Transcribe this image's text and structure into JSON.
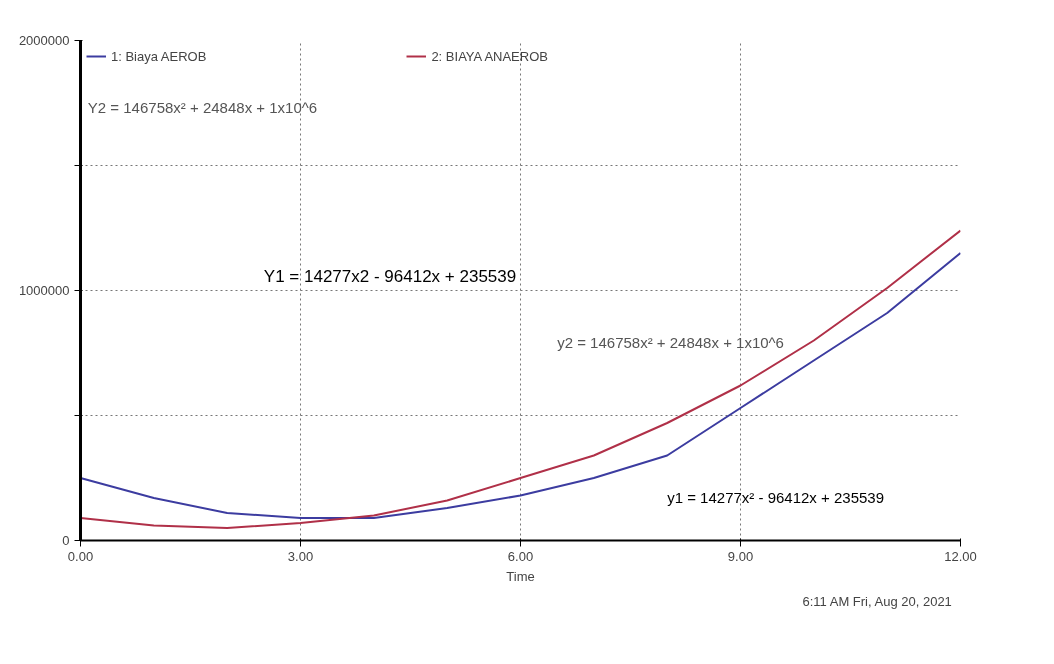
{
  "chart_data": {
    "type": "line",
    "xlabel": "Time",
    "x": [
      0,
      1,
      2,
      3,
      4,
      5,
      6,
      7,
      8,
      9,
      10,
      11,
      12
    ],
    "series": [
      {
        "name": "1: Biaya AEROB",
        "color": "#3c3ca0",
        "values": [
          250000,
          170000,
          110000,
          90000,
          90000,
          130000,
          180000,
          250000,
          340000,
          530000,
          720000,
          910000,
          1150000
        ]
      },
      {
        "name": "2: BIAYA ANAEROB",
        "color": "#b03048",
        "values": [
          90000,
          60000,
          50000,
          70000,
          100000,
          160000,
          250000,
          340000,
          470000,
          620000,
          800000,
          1010000,
          1240000
        ]
      }
    ],
    "xlim": [
      0,
      12
    ],
    "xticks": [
      {
        "value": 0,
        "label": "0.00"
      },
      {
        "value": 3,
        "label": "3.00"
      },
      {
        "value": 6,
        "label": "6.00"
      },
      {
        "value": 9,
        "label": "9.00"
      },
      {
        "value": 12,
        "label": "12.00"
      }
    ],
    "ylim": [
      0,
      2000000
    ],
    "yticks": [
      0,
      {
        "value": 500000,
        "label": null
      },
      1000000,
      {
        "value": 1500000,
        "label": null
      },
      2000000
    ],
    "grid": true,
    "legend": "top",
    "marker": "none",
    "line_style": "solid",
    "annotations": [
      "Y2 = 146758x² + 24848x + 1x10^6",
      "Y1 = 14277x2 - 96412x + 235539",
      "y2 = 146758x² + 24848x + 1x10^6",
      "y1 = 14277x² - 96412x + 235539",
      "6:11 AM   Fri, Aug 20, 2021"
    ]
  }
}
